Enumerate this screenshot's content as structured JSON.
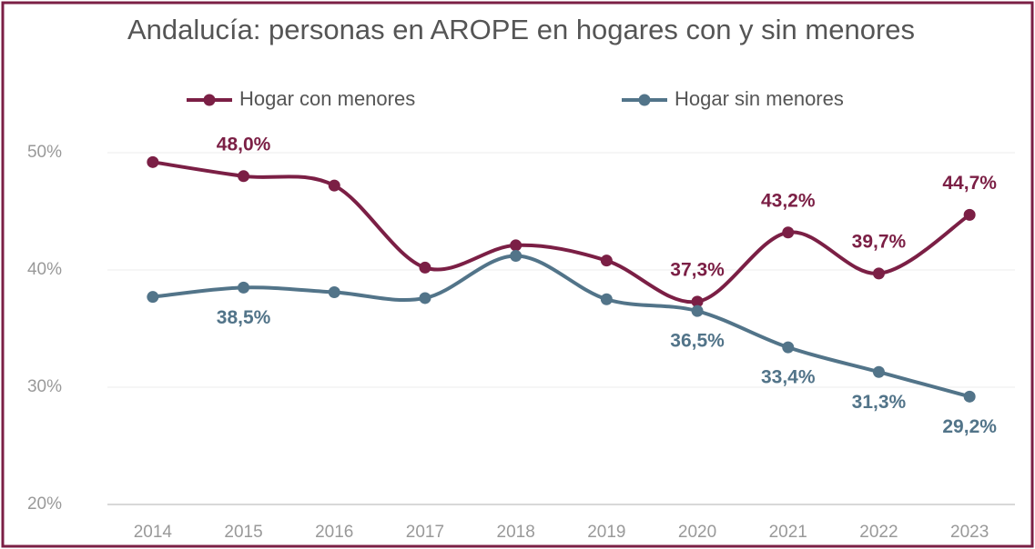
{
  "chart_data": {
    "type": "line",
    "title": "Andalucía: personas en AROPE en hogares con y sin menores",
    "categories": [
      "2014",
      "2015",
      "2016",
      "2017",
      "2018",
      "2019",
      "2020",
      "2021",
      "2022",
      "2023"
    ],
    "series": [
      {
        "name": "Hogar con menores",
        "color": "#7b1f45",
        "values": [
          49.2,
          48.0,
          47.2,
          40.2,
          42.1,
          40.8,
          37.3,
          43.2,
          39.7,
          44.7
        ],
        "value_labels": [
          null,
          "48,0%",
          null,
          null,
          null,
          null,
          "37,3%",
          "43,2%",
          "39,7%",
          "44,7%"
        ]
      },
      {
        "name": "Hogar sin menores",
        "color": "#527489",
        "values": [
          37.7,
          38.5,
          38.1,
          37.6,
          41.2,
          37.5,
          36.5,
          33.4,
          31.3,
          29.2
        ],
        "value_labels": [
          null,
          "38,5%",
          null,
          null,
          null,
          null,
          "36,5%",
          "33,4%",
          "31,3%",
          "29,2%"
        ]
      }
    ],
    "ylim": [
      20,
      50
    ],
    "yticks": [
      {
        "value": 20,
        "label": "20%"
      },
      {
        "value": 30,
        "label": "30%"
      },
      {
        "value": 40,
        "label": "40%"
      },
      {
        "value": 50,
        "label": "50%"
      }
    ],
    "grid": true,
    "legend": "top"
  }
}
